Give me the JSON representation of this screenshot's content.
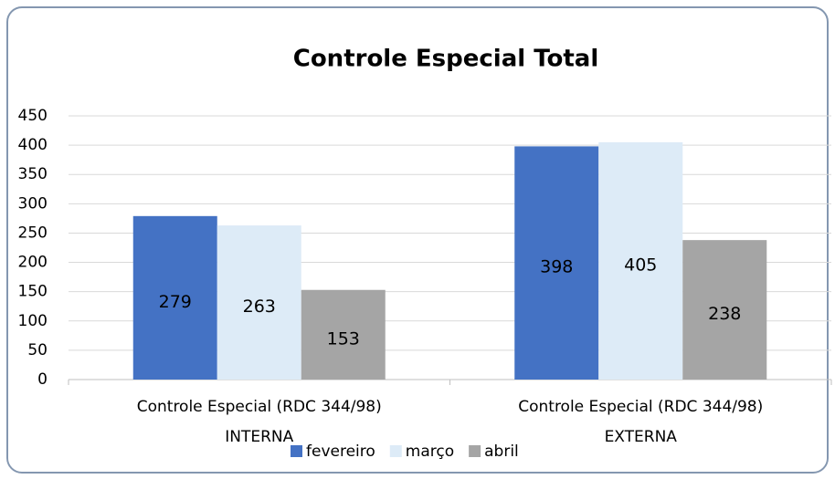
{
  "chart_data": {
    "type": "bar",
    "title": "Controle Especial Total",
    "categories": [
      "Controle Especial (RDC 344/98)\nINTERNA",
      "Controle Especial (RDC 344/98)\nEXTERNA"
    ],
    "series": [
      {
        "name": "fevereiro",
        "color": "#4472c4",
        "values": [
          279,
          398
        ]
      },
      {
        "name": "março",
        "color": "#ddebf7",
        "values": [
          263,
          405
        ]
      },
      {
        "name": "abril",
        "color": "#a5a5a5",
        "values": [
          153,
          238
        ]
      }
    ],
    "ylim": [
      0,
      450
    ],
    "yticks": [
      0,
      50,
      100,
      150,
      200,
      250,
      300,
      350,
      400,
      450
    ],
    "grid": true,
    "legend": "bottom"
  }
}
